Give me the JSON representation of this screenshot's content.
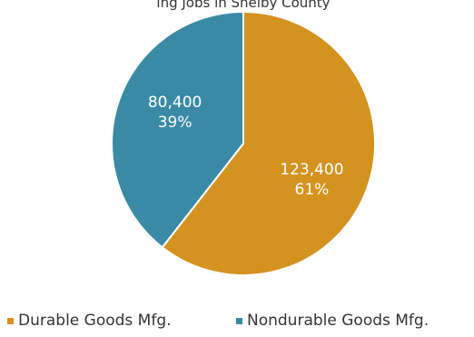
{
  "chart_data": {
    "type": "pie",
    "title": "ing Jobs in Shelby County",
    "slices": [
      {
        "name": "Durable Goods Mfg.",
        "value": 123400,
        "value_label": "123,400",
        "percent_label": "61%",
        "color": "#d4921f"
      },
      {
        "name": "Nondurable Goods Mfg.",
        "value": 80400,
        "value_label": "80,400",
        "percent_label": "39%",
        "color": "#3a8aa6"
      }
    ],
    "legend_position": "bottom"
  }
}
